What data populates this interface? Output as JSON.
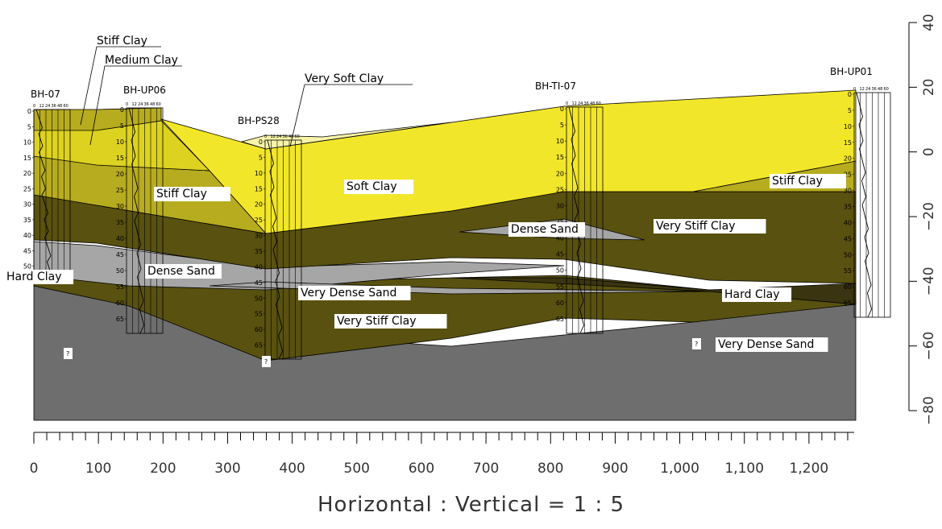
{
  "colors": {
    "very_soft_clay": "#f7f3a8",
    "soft_clay": "#f2e62a",
    "stiff_clay": "#b7ac1f",
    "medium_clay": "#ddd21f",
    "very_stiff_clay": "#59510f",
    "hard_clay": "#3a3410",
    "dense_sand": "#a6a6a6",
    "very_dense_sand": "#6e6e6e",
    "outline": "#000000"
  },
  "strata_labels": [
    {
      "text": "Stiff Clay",
      "leader": true
    },
    {
      "text": "Medium Clay",
      "leader": true
    },
    {
      "text": "Very Soft Clay",
      "leader": true
    },
    {
      "text": "Soft Clay"
    },
    {
      "text": "Stiff Clay"
    },
    {
      "text": "Stiff Clay"
    },
    {
      "text": "Dense Sand"
    },
    {
      "text": "Dense Sand"
    },
    {
      "text": "Very Stiff Clay"
    },
    {
      "text": "Hard Clay"
    },
    {
      "text": "Very Dense Sand"
    },
    {
      "text": "Very Stiff Clay"
    },
    {
      "text": "Hard Clay"
    },
    {
      "text": "Very Dense Sand"
    }
  ],
  "unknown_markers": [
    "?",
    "?",
    "?"
  ],
  "boreholes": [
    {
      "name": "BH-07",
      "depth_ticks": [
        "0",
        "5",
        "10",
        "15",
        "20",
        "25",
        "30",
        "35",
        "40",
        "45",
        "50"
      ]
    },
    {
      "name": "BH-UP06",
      "depth_ticks": [
        "0",
        "5",
        "10",
        "15",
        "20",
        "25",
        "30",
        "35",
        "40",
        "45",
        "50",
        "55",
        "60",
        "65"
      ]
    },
    {
      "name": "BH-PS28",
      "depth_ticks": [
        "0",
        "5",
        "10",
        "15",
        "20",
        "25",
        "30",
        "35",
        "40",
        "45",
        "50",
        "55",
        "60",
        "65"
      ]
    },
    {
      "name": "BH-TI-07",
      "depth_ticks": [
        "0",
        "5",
        "10",
        "15",
        "20",
        "25",
        "30",
        "35",
        "40",
        "45",
        "50",
        "55",
        "60",
        "65"
      ]
    },
    {
      "name": "BH-UP01",
      "depth_ticks": [
        "0",
        "5",
        "10",
        "15",
        "20",
        "25",
        "30",
        "35",
        "40",
        "45",
        "50",
        "55",
        "60",
        "65"
      ]
    }
  ],
  "spt_scale": [
    "0",
    "12",
    "24",
    "36",
    "48",
    "60"
  ],
  "x_axis": {
    "ticks": [
      "0",
      "100",
      "200",
      "300",
      "400",
      "500",
      "600",
      "700",
      "800",
      "900",
      "1,000",
      "1,100",
      "1,200"
    ]
  },
  "y_axis": {
    "ticks": [
      "40",
      "20",
      "0",
      "−20",
      "−40",
      "−60",
      "−80"
    ]
  },
  "caption": "Horizontal : Vertical = 1 : 5"
}
